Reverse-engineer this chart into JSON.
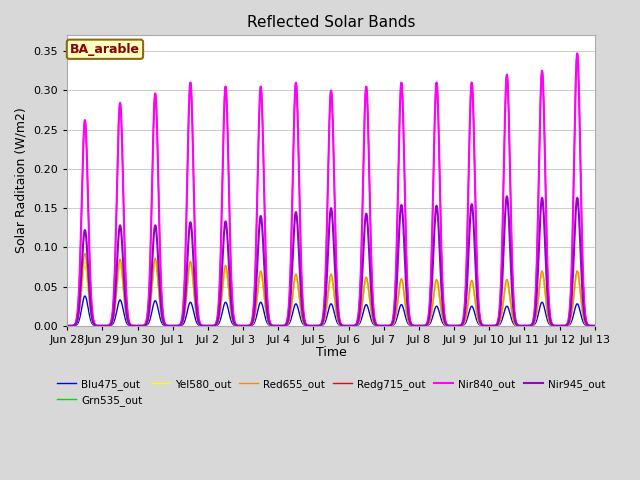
{
  "title": "Reflected Solar Bands",
  "xlabel": "Time",
  "ylabel": "Solar Raditaion (W/m2)",
  "annotation_text": "BA_arable",
  "annotation_bg": "#ffffc0",
  "annotation_border": "#8B6914",
  "annotation_text_color": "#8B0000",
  "fig_bg_color": "#d8d8d8",
  "plot_bg_color": "#ffffff",
  "ylim": [
    0.0,
    0.37
  ],
  "yticks": [
    0.0,
    0.05,
    0.1,
    0.15,
    0.2,
    0.25,
    0.3,
    0.35
  ],
  "series": [
    {
      "name": "Blu475_out",
      "color": "#0000ff",
      "lw": 1.0
    },
    {
      "name": "Grn535_out",
      "color": "#00dd00",
      "lw": 1.0
    },
    {
      "name": "Yel580_out",
      "color": "#ffff00",
      "lw": 1.0
    },
    {
      "name": "Red655_out",
      "color": "#ff8800",
      "lw": 1.0
    },
    {
      "name": "Redg715_out",
      "color": "#ff0000",
      "lw": 1.0
    },
    {
      "name": "Nir840_out",
      "color": "#ff00ff",
      "lw": 1.5
    },
    {
      "name": "Nir945_out",
      "color": "#9900cc",
      "lw": 1.5
    }
  ],
  "tick_labels": [
    "Jun 28",
    "Jun 29",
    "Jun 30",
    "Jul 1",
    "Jul 2",
    "Jul 3",
    "Jul 4",
    "Jul 5",
    "Jul 6",
    "Jul 7",
    "Jul 8",
    "Jul 9",
    "Jul 10",
    "Jul 11",
    "Jul 12",
    "Jul 13"
  ],
  "n_days": 15,
  "pts_per_day": 96,
  "sigma": 0.09,
  "day_peaks": {
    "Blu475_out": [
      0.038,
      0.033,
      0.032,
      0.03,
      0.03,
      0.03,
      0.028,
      0.028,
      0.027,
      0.027,
      0.025,
      0.025,
      0.025,
      0.03,
      0.028
    ],
    "Grn535_out": [
      0.08,
      0.08,
      0.082,
      0.08,
      0.072,
      0.067,
      0.063,
      0.062,
      0.06,
      0.058,
      0.056,
      0.055,
      0.056,
      0.068,
      0.068
    ],
    "Yel580_out": [
      0.08,
      0.08,
      0.082,
      0.08,
      0.072,
      0.067,
      0.063,
      0.062,
      0.06,
      0.058,
      0.056,
      0.055,
      0.056,
      0.068,
      0.068
    ],
    "Red655_out": [
      0.092,
      0.085,
      0.086,
      0.082,
      0.077,
      0.07,
      0.066,
      0.066,
      0.062,
      0.06,
      0.059,
      0.058,
      0.059,
      0.07,
      0.07
    ],
    "Redg715_out": [
      0.262,
      0.284,
      0.296,
      0.31,
      0.305,
      0.305,
      0.31,
      0.3,
      0.305,
      0.31,
      0.31,
      0.31,
      0.32,
      0.325,
      0.347
    ],
    "Nir840_out": [
      0.262,
      0.284,
      0.296,
      0.31,
      0.305,
      0.305,
      0.31,
      0.3,
      0.305,
      0.31,
      0.31,
      0.31,
      0.32,
      0.325,
      0.347
    ],
    "Nir945_out": [
      0.122,
      0.128,
      0.128,
      0.132,
      0.133,
      0.14,
      0.145,
      0.15,
      0.143,
      0.154,
      0.153,
      0.155,
      0.165,
      0.163,
      0.163
    ]
  }
}
